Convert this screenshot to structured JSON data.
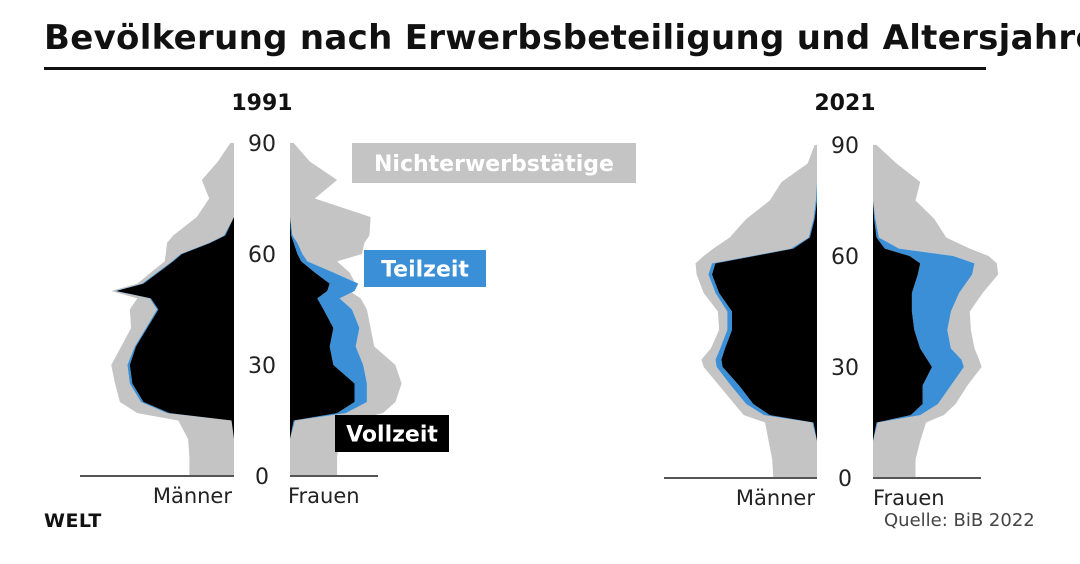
{
  "title": "Bevölkerung nach Erwerbsbeteiligung und Altersjahren",
  "source": "Quelle:  BiB 2022",
  "logo": "WELT",
  "colors": {
    "nichterwerbstaetige": "#c4c4c4",
    "teilzeit": "#3a8fd6",
    "vollzeit": "#000000",
    "text": "#111111",
    "axis": "#555555"
  },
  "chart_data": [
    {
      "type": "area",
      "title": "1991",
      "yticks": [
        "0",
        "30",
        "60",
        "90"
      ],
      "ylim": [
        0,
        90
      ],
      "left_label": "Männer",
      "right_label": "Frauen",
      "legend": [
        {
          "name": "Nichterwerbstätige",
          "color": "#c4c4c4",
          "text_color": "#ffffff"
        },
        {
          "name": "Teilzeit",
          "color": "#3a8fd6",
          "text_color": "#ffffff"
        },
        {
          "name": "Vollzeit",
          "color": "#000000",
          "text_color": "#ffffff"
        }
      ],
      "age": [
        0,
        5,
        10,
        15,
        17,
        20,
        25,
        30,
        35,
        40,
        45,
        48,
        50,
        52,
        55,
        58,
        60,
        63,
        65,
        70,
        75,
        80,
        85,
        90
      ],
      "maenner": {
        "total": [
          0.36,
          0.36,
          0.37,
          0.45,
          0.78,
          0.92,
          0.96,
          0.99,
          0.91,
          0.83,
          0.84,
          0.78,
          0.99,
          0.78,
          0.67,
          0.56,
          0.55,
          0.54,
          0.49,
          0.3,
          0.2,
          0.26,
          0.13,
          0.03
        ],
        "erwerb": [
          0.0,
          0.0,
          0.0,
          0.02,
          0.54,
          0.75,
          0.84,
          0.86,
          0.8,
          0.71,
          0.62,
          0.68,
          0.96,
          0.74,
          0.62,
          0.5,
          0.43,
          0.2,
          0.08,
          0.0,
          0.0,
          0.0,
          0.0,
          0.0
        ],
        "vollzeit": [
          0.0,
          0.0,
          0.0,
          0.02,
          0.52,
          0.73,
          0.82,
          0.84,
          0.79,
          0.7,
          0.61,
          0.67,
          0.95,
          0.73,
          0.61,
          0.49,
          0.42,
          0.19,
          0.07,
          0.0,
          0.0,
          0.0,
          0.0,
          0.0
        ]
      },
      "frauen": {
        "total": [
          0.38,
          0.38,
          0.4,
          0.49,
          0.75,
          0.85,
          0.9,
          0.85,
          0.68,
          0.65,
          0.62,
          0.57,
          0.48,
          0.53,
          0.48,
          0.38,
          0.58,
          0.6,
          0.64,
          0.65,
          0.2,
          0.38,
          0.16,
          0.03
        ],
        "erwerb": [
          0.0,
          0.0,
          0.0,
          0.04,
          0.45,
          0.62,
          0.62,
          0.59,
          0.53,
          0.56,
          0.5,
          0.4,
          0.52,
          0.55,
          0.35,
          0.14,
          0.1,
          0.06,
          0.02,
          0.0,
          0.0,
          0.0,
          0.0,
          0.0
        ],
        "vollzeit": [
          0.0,
          0.0,
          0.0,
          0.03,
          0.38,
          0.52,
          0.52,
          0.35,
          0.32,
          0.35,
          0.27,
          0.22,
          0.3,
          0.32,
          0.2,
          0.09,
          0.06,
          0.03,
          0.01,
          0.0,
          0.0,
          0.0,
          0.0,
          0.0
        ]
      }
    },
    {
      "type": "area",
      "title": "2021",
      "yticks": [
        "0",
        "30",
        "60",
        "90"
      ],
      "ylim": [
        0,
        90
      ],
      "left_label": "Männer",
      "right_label": "Frauen",
      "age": [
        0,
        5,
        10,
        15,
        17,
        20,
        25,
        30,
        32,
        35,
        40,
        45,
        50,
        55,
        58,
        60,
        62,
        65,
        70,
        75,
        80,
        85,
        90
      ],
      "maenner": {
        "total": [
          0.37,
          0.38,
          0.41,
          0.44,
          0.62,
          0.7,
          0.83,
          0.96,
          0.98,
          0.9,
          0.83,
          0.84,
          0.96,
          1.02,
          1.03,
          0.96,
          0.88,
          0.74,
          0.6,
          0.4,
          0.3,
          0.08,
          0.02
        ],
        "erwerb": [
          0.0,
          0.0,
          0.0,
          0.04,
          0.45,
          0.6,
          0.73,
          0.85,
          0.86,
          0.82,
          0.76,
          0.76,
          0.86,
          0.92,
          0.89,
          0.55,
          0.22,
          0.07,
          0.03,
          0.01,
          0.0,
          0.0,
          0.0
        ],
        "vollzeit": [
          0.0,
          0.0,
          0.0,
          0.03,
          0.4,
          0.54,
          0.66,
          0.8,
          0.81,
          0.78,
          0.72,
          0.72,
          0.83,
          0.89,
          0.86,
          0.53,
          0.2,
          0.06,
          0.02,
          0.0,
          0.0,
          0.0,
          0.0
        ]
      },
      "frauen": {
        "total": [
          0.36,
          0.36,
          0.4,
          0.45,
          0.6,
          0.7,
          0.8,
          0.92,
          0.9,
          0.86,
          0.83,
          0.82,
          0.93,
          1.06,
          1.05,
          0.98,
          0.82,
          0.62,
          0.52,
          0.36,
          0.4,
          0.2,
          0.03
        ],
        "erwerb": [
          0.0,
          0.0,
          0.0,
          0.04,
          0.4,
          0.55,
          0.66,
          0.77,
          0.75,
          0.66,
          0.63,
          0.66,
          0.73,
          0.84,
          0.86,
          0.68,
          0.22,
          0.05,
          0.02,
          0.0,
          0.0,
          0.0,
          0.0
        ],
        "vollzeit": [
          0.0,
          0.0,
          0.0,
          0.03,
          0.32,
          0.42,
          0.42,
          0.5,
          0.46,
          0.4,
          0.35,
          0.33,
          0.33,
          0.38,
          0.4,
          0.31,
          0.1,
          0.03,
          0.01,
          0.0,
          0.0,
          0.0,
          0.0
        ]
      }
    }
  ]
}
